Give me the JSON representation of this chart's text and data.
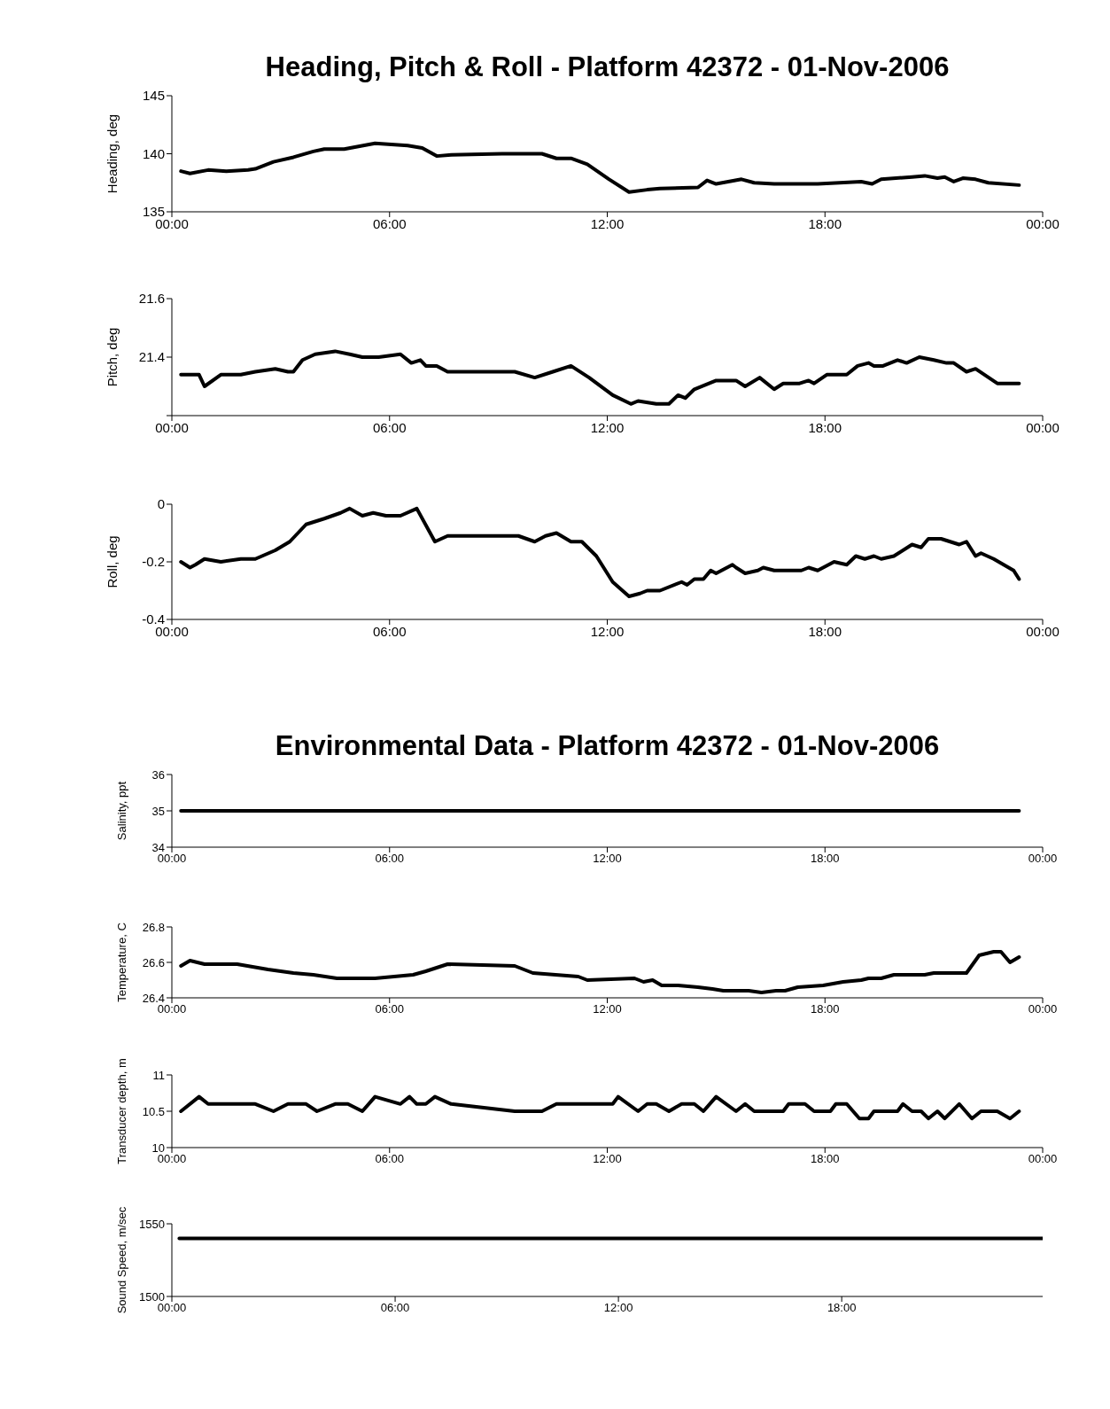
{
  "chart_data": [
    {
      "type": "line",
      "title": "Heading, Pitch & Roll - Platform 42372 - 01-Nov-2006",
      "ylabel": "Heading, deg",
      "color": "#000000",
      "x": [
        0.25,
        0.5,
        1.0,
        1.5,
        2.1,
        2.3,
        2.8,
        3.35,
        3.9,
        4.2,
        4.75,
        5.6,
        6.5,
        6.9,
        7.3,
        7.7,
        9.1,
        10.2,
        10.6,
        11.0,
        11.45,
        12.05,
        12.6,
        13.1,
        13.45,
        14.5,
        14.75,
        15.0,
        15.7,
        16.05,
        16.6,
        17.8,
        19.0,
        19.3,
        19.55,
        20.4,
        20.75,
        21.1,
        21.3,
        21.55,
        21.8,
        22.15,
        22.5,
        23.35
      ],
      "values": [
        138.5,
        138.3,
        138.6,
        138.5,
        138.6,
        138.7,
        139.3,
        139.7,
        140.2,
        140.4,
        140.4,
        140.9,
        140.7,
        140.5,
        139.8,
        139.9,
        140,
        140,
        139.6,
        139.6,
        139.1,
        137.8,
        136.7,
        136.9,
        137.0,
        137.1,
        137.7,
        137.4,
        137.8,
        137.5,
        137.4,
        137.4,
        137.6,
        137.4,
        137.8,
        138.0,
        138.1,
        137.9,
        138.0,
        137.6,
        137.9,
        137.8,
        137.5,
        137.3
      ],
      "xlim": [
        0,
        24
      ],
      "ylim": [
        135,
        145
      ],
      "yticks": [
        135,
        140,
        145
      ],
      "xticks": [
        {
          "value": 0,
          "label": "00:00"
        },
        {
          "value": 6,
          "label": "06:00"
        },
        {
          "value": 12,
          "label": "12:00"
        },
        {
          "value": 18,
          "label": "18:00"
        },
        {
          "value": 24,
          "label": "00:00"
        }
      ]
    },
    {
      "type": "line",
      "ylabel": "Pitch, deg",
      "color": "#000000",
      "x": [
        0.25,
        0.75,
        0.9,
        1.35,
        1.9,
        2.3,
        2.85,
        3.2,
        3.35,
        3.6,
        3.95,
        4.5,
        4.9,
        5.25,
        5.7,
        6.3,
        6.6,
        6.85,
        7.0,
        7.3,
        7.6,
        9.45,
        10.0,
        10.5,
        11.0,
        11.5,
        12.15,
        12.65,
        12.85,
        13.35,
        13.7,
        13.95,
        14.15,
        14.4,
        15.0,
        15.55,
        15.8,
        16.2,
        16.6,
        16.85,
        17.3,
        17.55,
        17.7,
        18.05,
        18.6,
        18.9,
        19.2,
        19.35,
        19.6,
        20.0,
        20.25,
        20.6,
        21.0,
        21.35,
        21.55,
        21.9,
        22.15,
        22.75,
        23.35
      ],
      "values": [
        21.34,
        21.34,
        21.3,
        21.34,
        21.34,
        21.35,
        21.36,
        21.35,
        21.35,
        21.39,
        21.41,
        21.42,
        21.41,
        21.4,
        21.4,
        21.41,
        21.38,
        21.39,
        21.37,
        21.37,
        21.35,
        21.35,
        21.33,
        21.35,
        21.37,
        21.33,
        21.27,
        21.24,
        21.25,
        21.24,
        21.24,
        21.27,
        21.26,
        21.29,
        21.32,
        21.32,
        21.3,
        21.33,
        21.29,
        21.31,
        21.31,
        21.32,
        21.31,
        21.34,
        21.34,
        21.37,
        21.38,
        21.37,
        21.37,
        21.39,
        21.38,
        21.4,
        21.39,
        21.38,
        21.38,
        21.35,
        21.36,
        21.31,
        21.31
      ],
      "xlim": [
        0,
        24
      ],
      "ylim": [
        21.2,
        21.6
      ],
      "yticks": [
        {
          "value": 21.2,
          "label": null
        },
        21.4,
        21.6
      ],
      "xticks": [
        {
          "value": 0,
          "label": "00:00"
        },
        {
          "value": 6,
          "label": "06:00"
        },
        {
          "value": 12,
          "label": "12:00"
        },
        {
          "value": 18,
          "label": "18:00"
        },
        {
          "value": 24,
          "label": "00:00"
        }
      ]
    },
    {
      "type": "line",
      "ylabel": "Roll, deg",
      "color": "#000000",
      "x": [
        0.25,
        0.5,
        0.65,
        0.9,
        1.35,
        1.9,
        2.3,
        2.85,
        3.25,
        3.7,
        4.2,
        4.65,
        4.9,
        5.25,
        5.55,
        5.9,
        6.3,
        6.75,
        7.25,
        7.6,
        9.55,
        10.0,
        10.3,
        10.6,
        11.0,
        11.3,
        11.7,
        12.15,
        12.6,
        12.9,
        13.1,
        13.45,
        14.05,
        14.2,
        14.4,
        14.65,
        14.85,
        15.0,
        15.45,
        15.55,
        15.8,
        16.15,
        16.3,
        16.6,
        17.35,
        17.55,
        17.8,
        18.25,
        18.6,
        18.85,
        19.1,
        19.35,
        19.55,
        19.9,
        20.4,
        20.65,
        20.85,
        21.2,
        21.7,
        21.9,
        22.15,
        22.3,
        22.65,
        23.2,
        23.35
      ],
      "values": [
        -0.2,
        -0.22,
        -0.21,
        -0.19,
        -0.2,
        -0.19,
        -0.19,
        -0.16,
        -0.13,
        -0.07,
        -0.05,
        -0.03,
        -0.015,
        -0.04,
        -0.03,
        -0.04,
        -0.04,
        -0.015,
        -0.13,
        -0.11,
        -0.11,
        -0.13,
        -0.11,
        -0.1,
        -0.13,
        -0.13,
        -0.18,
        -0.27,
        -0.32,
        -0.31,
        -0.3,
        -0.3,
        -0.27,
        -0.28,
        -0.26,
        -0.26,
        -0.23,
        -0.24,
        -0.21,
        -0.22,
        -0.24,
        -0.23,
        -0.22,
        -0.23,
        -0.23,
        -0.22,
        -0.23,
        -0.2,
        -0.21,
        -0.18,
        -0.19,
        -0.18,
        -0.19,
        -0.18,
        -0.14,
        -0.15,
        -0.12,
        -0.12,
        -0.14,
        -0.13,
        -0.18,
        -0.17,
        -0.19,
        -0.23,
        -0.26
      ],
      "xlim": [
        0,
        24
      ],
      "ylim": [
        -0.4,
        0
      ],
      "yticks": [
        -0.4,
        -0.2,
        0
      ],
      "xticks": [
        {
          "value": 0,
          "label": "00:00"
        },
        {
          "value": 6,
          "label": "06:00"
        },
        {
          "value": 12,
          "label": "12:00"
        },
        {
          "value": 18,
          "label": "18:00"
        },
        {
          "value": 24,
          "label": "00:00"
        }
      ]
    },
    {
      "type": "line",
      "title": "Environmental Data - Platform 42372 - 01-Nov-2006",
      "ylabel": "Salinity, ppt",
      "color": "#000000",
      "x": [
        0.25,
        23.35
      ],
      "values": [
        35,
        35
      ],
      "xlim": [
        0,
        24
      ],
      "ylim": [
        34,
        36
      ],
      "yticks": [
        34,
        35,
        36
      ],
      "xticks": [
        {
          "value": 0,
          "label": "00:00"
        },
        {
          "value": 6,
          "label": "06:00"
        },
        {
          "value": 12,
          "label": "12:00"
        },
        {
          "value": 18,
          "label": "18:00"
        },
        {
          "value": 24,
          "label": "00:00"
        }
      ]
    },
    {
      "type": "line",
      "ylabel": "Temperature, C",
      "color": "#000000",
      "x": [
        0.25,
        0.5,
        0.9,
        1.8,
        2.65,
        3.35,
        3.9,
        4.55,
        5.6,
        6.65,
        7.0,
        7.6,
        9.45,
        9.95,
        11.2,
        11.45,
        12.75,
        13.0,
        13.25,
        13.5,
        13.95,
        14.5,
        14.9,
        15.2,
        15.9,
        16.25,
        16.65,
        16.9,
        17.25,
        17.95,
        18.5,
        19.0,
        19.2,
        19.55,
        19.9,
        20.75,
        21.0,
        21.9,
        22.25,
        22.65,
        22.85,
        23.1,
        23.35
      ],
      "values": [
        26.58,
        26.61,
        26.59,
        26.59,
        26.56,
        26.54,
        26.53,
        26.51,
        26.51,
        26.53,
        26.55,
        26.59,
        26.58,
        26.54,
        26.52,
        26.5,
        26.51,
        26.49,
        26.5,
        26.47,
        26.47,
        26.46,
        26.45,
        26.44,
        26.44,
        26.43,
        26.44,
        26.44,
        26.46,
        26.47,
        26.49,
        26.5,
        26.51,
        26.51,
        26.53,
        26.53,
        26.54,
        26.54,
        26.64,
        26.66,
        26.66,
        26.6,
        26.63
      ],
      "xlim": [
        0,
        24
      ],
      "ylim": [
        26.4,
        26.8
      ],
      "yticks": [
        26.4,
        26.6,
        26.8
      ],
      "xticks": [
        {
          "value": 0,
          "label": "00:00"
        },
        {
          "value": 6,
          "label": "06:00"
        },
        {
          "value": 12,
          "label": "12:00"
        },
        {
          "value": 18,
          "label": "18:00"
        },
        {
          "value": 24,
          "label": "00:00"
        }
      ]
    },
    {
      "type": "line",
      "ylabel": "Transducer depth, m",
      "color": "#000000",
      "x": [
        0.25,
        0.75,
        1.0,
        2.3,
        2.8,
        3.2,
        3.7,
        4.0,
        4.5,
        4.85,
        5.25,
        5.6,
        6.3,
        6.55,
        6.75,
        7.0,
        7.25,
        7.7,
        9.45,
        10.2,
        10.6,
        12.15,
        12.3,
        12.85,
        13.1,
        13.35,
        13.7,
        14.05,
        14.4,
        14.65,
        15.0,
        15.55,
        15.8,
        16.05,
        16.85,
        17.0,
        17.45,
        17.7,
        18.15,
        18.3,
        18.6,
        18.95,
        19.2,
        19.35,
        20.0,
        20.15,
        20.4,
        20.65,
        20.85,
        21.1,
        21.3,
        21.7,
        22.05,
        22.3,
        22.75,
        23.1,
        23.35
      ],
      "values": [
        10.5,
        10.7,
        10.6,
        10.6,
        10.5,
        10.6,
        10.6,
        10.5,
        10.6,
        10.6,
        10.5,
        10.7,
        10.6,
        10.7,
        10.6,
        10.6,
        10.7,
        10.6,
        10.5,
        10.5,
        10.6,
        10.6,
        10.7,
        10.5,
        10.6,
        10.6,
        10.5,
        10.6,
        10.6,
        10.5,
        10.7,
        10.5,
        10.6,
        10.5,
        10.5,
        10.6,
        10.6,
        10.5,
        10.5,
        10.6,
        10.6,
        10.4,
        10.4,
        10.5,
        10.5,
        10.6,
        10.5,
        10.5,
        10.4,
        10.5,
        10.4,
        10.6,
        10.4,
        10.5,
        10.5,
        10.4,
        10.5
      ],
      "xlim": [
        0,
        24
      ],
      "ylim": [
        10,
        11
      ],
      "yticks": [
        10,
        10.5,
        11
      ],
      "xticks": [
        {
          "value": 0,
          "label": "00:00"
        },
        {
          "value": 6,
          "label": "06:00"
        },
        {
          "value": 12,
          "label": "12:00"
        },
        {
          "value": 18,
          "label": "18:00"
        },
        {
          "value": 24,
          "label": "00:00"
        }
      ]
    },
    {
      "type": "line",
      "ylabel": "Sound Speed, m/sec",
      "color": "#000000",
      "x": [
        0.2,
        23.4
      ],
      "values": [
        1540,
        1540
      ],
      "xlim": [
        0,
        23.4
      ],
      "ylim": [
        1500,
        1550
      ],
      "yticks": [
        1500,
        1550
      ],
      "xticks": [
        {
          "value": 0,
          "label": "00:00"
        },
        {
          "value": 6,
          "label": "06:00"
        },
        {
          "value": 12,
          "label": "12:00"
        },
        {
          "value": 18,
          "label": "18:00"
        }
      ]
    }
  ]
}
